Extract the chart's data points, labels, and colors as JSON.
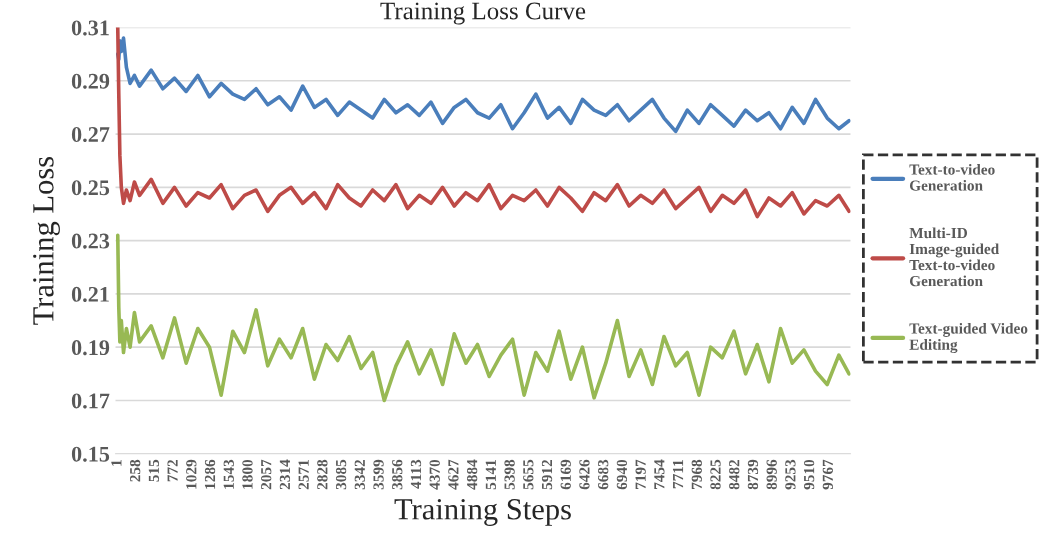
{
  "chart_data": {
    "type": "line",
    "title": "Training Loss Curve",
    "xlabel": "Training Steps",
    "ylabel": "Training Loss",
    "x": [
      1,
      15,
      30,
      50,
      80,
      120,
      170,
      230,
      300,
      460,
      620,
      780,
      940,
      1100,
      1260,
      1420,
      1580,
      1740,
      1900,
      2060,
      2220,
      2380,
      2540,
      2700,
      2860,
      3020,
      3180,
      3340,
      3500,
      3660,
      3820,
      3980,
      4140,
      4300,
      4460,
      4620,
      4780,
      4940,
      5100,
      5260,
      5420,
      5580,
      5740,
      5900,
      6060,
      6220,
      6380,
      6540,
      6700,
      6860,
      7020,
      7180,
      7340,
      7500,
      7660,
      7820,
      7980,
      8140,
      8300,
      8460,
      8620,
      8780,
      8940,
      9100,
      9260,
      9420,
      9580,
      9740,
      9900,
      10040
    ],
    "series": [
      {
        "name": "Text-to-video Generation",
        "color": "#4a7ebb",
        "values": [
          0.3,
          0.298,
          0.305,
          0.301,
          0.306,
          0.295,
          0.289,
          0.292,
          0.288,
          0.294,
          0.287,
          0.291,
          0.286,
          0.292,
          0.284,
          0.289,
          0.285,
          0.283,
          0.287,
          0.281,
          0.284,
          0.279,
          0.288,
          0.28,
          0.283,
          0.277,
          0.282,
          0.279,
          0.276,
          0.283,
          0.278,
          0.281,
          0.277,
          0.282,
          0.274,
          0.28,
          0.283,
          0.278,
          0.276,
          0.281,
          0.272,
          0.278,
          0.285,
          0.276,
          0.28,
          0.274,
          0.283,
          0.279,
          0.277,
          0.281,
          0.275,
          0.279,
          0.283,
          0.276,
          0.271,
          0.279,
          0.274,
          0.281,
          0.277,
          0.273,
          0.279,
          0.275,
          0.278,
          0.272,
          0.28,
          0.274,
          0.283,
          0.276,
          0.272,
          0.275
        ]
      },
      {
        "name": "Multi-ID Image-guided Text-to-video Generation",
        "color": "#be4b48",
        "values": [
          0.31,
          0.285,
          0.262,
          0.25,
          0.244,
          0.249,
          0.245,
          0.252,
          0.247,
          0.253,
          0.244,
          0.25,
          0.243,
          0.248,
          0.246,
          0.251,
          0.242,
          0.247,
          0.249,
          0.241,
          0.247,
          0.25,
          0.244,
          0.248,
          0.242,
          0.251,
          0.246,
          0.243,
          0.249,
          0.245,
          0.251,
          0.242,
          0.247,
          0.244,
          0.25,
          0.243,
          0.248,
          0.245,
          0.251,
          0.242,
          0.247,
          0.245,
          0.249,
          0.243,
          0.25,
          0.246,
          0.241,
          0.248,
          0.245,
          0.251,
          0.243,
          0.247,
          0.244,
          0.249,
          0.242,
          0.246,
          0.25,
          0.241,
          0.247,
          0.244,
          0.249,
          0.239,
          0.246,
          0.243,
          0.248,
          0.24,
          0.245,
          0.243,
          0.247,
          0.241
        ]
      },
      {
        "name": "Text-guided Video Editing",
        "color": "#98b954",
        "values": [
          0.232,
          0.205,
          0.192,
          0.2,
          0.188,
          0.197,
          0.19,
          0.203,
          0.192,
          0.198,
          0.186,
          0.201,
          0.184,
          0.197,
          0.19,
          0.172,
          0.196,
          0.188,
          0.204,
          0.183,
          0.193,
          0.186,
          0.197,
          0.178,
          0.191,
          0.185,
          0.194,
          0.182,
          0.188,
          0.17,
          0.183,
          0.192,
          0.18,
          0.189,
          0.176,
          0.195,
          0.184,
          0.191,
          0.179,
          0.187,
          0.193,
          0.172,
          0.188,
          0.181,
          0.196,
          0.178,
          0.19,
          0.171,
          0.184,
          0.2,
          0.179,
          0.189,
          0.176,
          0.194,
          0.183,
          0.188,
          0.172,
          0.19,
          0.186,
          0.196,
          0.18,
          0.191,
          0.177,
          0.197,
          0.184,
          0.189,
          0.181,
          0.176,
          0.187,
          0.18
        ]
      }
    ],
    "xlim": [
      -30,
      10060
    ],
    "xticks": [
      1,
      258,
      515,
      772,
      1029,
      1286,
      1543,
      1800,
      2057,
      2314,
      2571,
      2828,
      3085,
      3342,
      3599,
      3856,
      4113,
      4370,
      4627,
      4884,
      5141,
      5398,
      5655,
      5912,
      6169,
      6426,
      6683,
      6940,
      7197,
      7454,
      7711,
      7968,
      8225,
      8482,
      8739,
      8996,
      9253,
      9510,
      9767
    ],
    "ylim": [
      0.15,
      0.31
    ],
    "yticks": [
      {
        "value": 0.15,
        "label": "0.15"
      },
      {
        "value": 0.17,
        "label": "0.17"
      },
      {
        "value": 0.19,
        "label": "0.19"
      },
      {
        "value": 0.21,
        "label": "0.21"
      },
      {
        "value": 0.23,
        "label": "0.23"
      },
      {
        "value": 0.25,
        "label": "0.25"
      },
      {
        "value": 0.27,
        "label": "0.27"
      },
      {
        "value": 0.29,
        "label": "0.29"
      },
      {
        "value": 0.31,
        "label": "0.31"
      }
    ],
    "grid": "y",
    "legend": "right",
    "line_style": "solid"
  }
}
